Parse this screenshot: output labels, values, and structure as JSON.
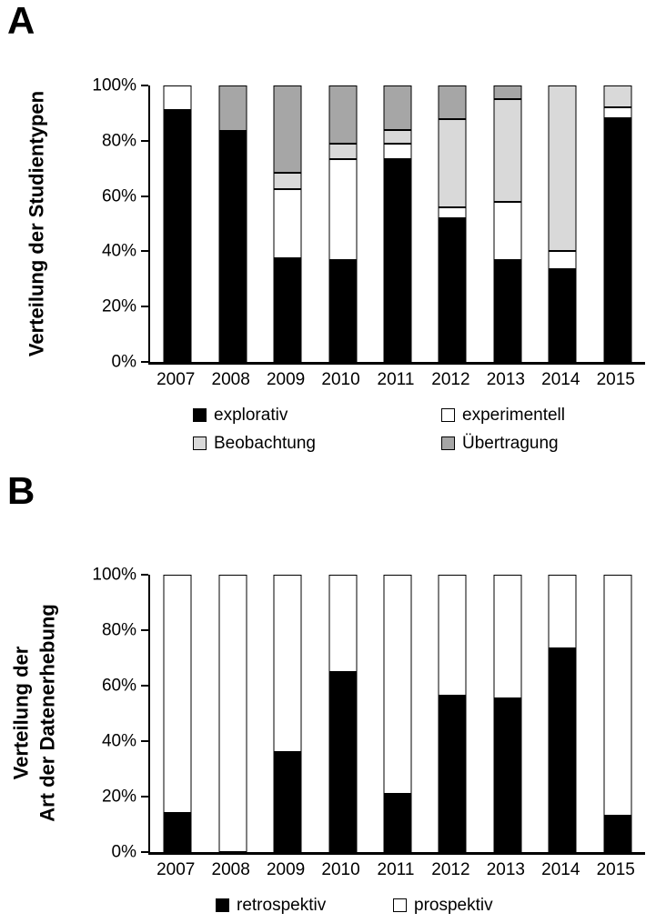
{
  "figure": {
    "panel_a": {
      "label": "A",
      "ylabel_line1": "Verteilung der Studientypen"
    },
    "panel_b": {
      "label": "B",
      "ylabel_line1": "Verteilung der",
      "ylabel_line2": "Art der Datenerhebung"
    }
  },
  "colors": {
    "explorativ": "#000000",
    "experimentell": "#ffffff",
    "beobachtung": "#d9d9d9",
    "uebertragung": "#a6a6a6",
    "axis": "#000000"
  },
  "chart_data": [
    {
      "type": "bar",
      "stacked": true,
      "unit": "percent",
      "title": "",
      "ylabel": "Verteilung der Studientypen",
      "xlabel": "",
      "ylim": [
        0,
        100
      ],
      "grid": false,
      "legend_position": "bottom",
      "yticks": [
        "0%",
        "20%",
        "40%",
        "60%",
        "80%",
        "100%"
      ],
      "categories": [
        "2007",
        "2008",
        "2009",
        "2010",
        "2011",
        "2012",
        "2013",
        "2014",
        "2015"
      ],
      "series": [
        {
          "name": "explorativ",
          "color": "#000000",
          "values": [
            91,
            83.5,
            37.5,
            37,
            73.5,
            52,
            37,
            33.5,
            88
          ]
        },
        {
          "name": "experimentell",
          "color": "#ffffff",
          "values": [
            9,
            0,
            25,
            36.5,
            5.5,
            4,
            21,
            6.5,
            4
          ]
        },
        {
          "name": "Beobachtung",
          "color": "#d9d9d9",
          "values": [
            0,
            0,
            6,
            5.5,
            5,
            32,
            37,
            60,
            8
          ]
        },
        {
          "name": "Übertragung",
          "color": "#a6a6a6",
          "values": [
            0,
            16.5,
            31.5,
            21,
            16,
            12,
            5,
            0,
            0
          ]
        }
      ]
    },
    {
      "type": "bar",
      "stacked": true,
      "unit": "percent",
      "title": "",
      "ylabel": "Verteilung der Art der Datenerhebung",
      "xlabel": "",
      "ylim": [
        0,
        100
      ],
      "grid": false,
      "legend_position": "bottom",
      "yticks": [
        "0%",
        "20%",
        "40%",
        "60%",
        "80%",
        "100%"
      ],
      "categories": [
        "2007",
        "2008",
        "2009",
        "2010",
        "2011",
        "2012",
        "2013",
        "2014",
        "2015"
      ],
      "series": [
        {
          "name": "retrospektiv",
          "color": "#000000",
          "values": [
            14,
            0,
            36,
            65,
            21,
            56.5,
            55.5,
            73.5,
            13
          ]
        },
        {
          "name": "prospektiv",
          "color": "#ffffff",
          "values": [
            86,
            100,
            64,
            35,
            79,
            43.5,
            44.5,
            26.5,
            87
          ]
        }
      ]
    }
  ]
}
